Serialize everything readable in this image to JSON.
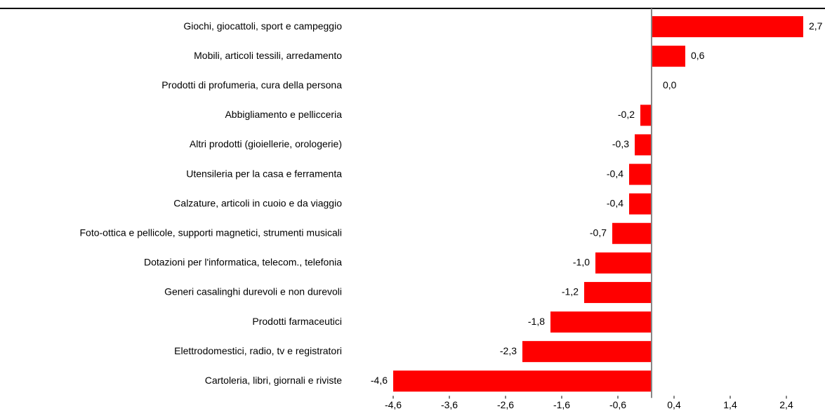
{
  "chart_data": {
    "type": "hbar",
    "categories": [
      "Giochi, giocattoli, sport e campeggio",
      "Mobili, articoli tessili, arredamento",
      "Prodotti di profumeria, cura della persona",
      "Abbigliamento e pellicceria",
      "Altri prodotti (gioiellerie, orologerie)",
      "Utensileria per la casa e ferramenta",
      "Calzature, articoli in cuoio e da viaggio",
      "Foto-ottica e pellicole, supporti magnetici, strumenti  musicali",
      "Dotazioni per l'informatica, telecom., telefonia",
      "Generi casalinghi durevoli e non durevoli",
      "Prodotti farmaceutici",
      "Elettrodomestici, radio, tv e registratori",
      "Cartoleria, libri, giornali e riviste"
    ],
    "values": [
      2.7,
      0.6,
      0.0,
      -0.2,
      -0.3,
      -0.4,
      -0.4,
      -0.7,
      -1.0,
      -1.2,
      -1.8,
      -2.3,
      -4.6
    ],
    "value_labels": [
      "2,7",
      "0,6",
      "0,0",
      "-0,2",
      "-0,3",
      "-0,4",
      "-0,4",
      "-0,7",
      "-1,0",
      "-1,2",
      "-1,8",
      "-2,3",
      "-4,6"
    ],
    "color": "#ff0000",
    "xlim": [
      -4.6,
      2.9
    ],
    "xticks": [
      {
        "value": -4.6,
        "label": "-4,6"
      },
      {
        "value": -3.6,
        "label": "-3,6"
      },
      {
        "value": -2.6,
        "label": "-2,6"
      },
      {
        "value": -1.6,
        "label": "-1,6"
      },
      {
        "value": -0.6,
        "label": "-0,6"
      },
      {
        "value": 0.4,
        "label": "0,4"
      },
      {
        "value": 1.4,
        "label": "1,4"
      },
      {
        "value": 2.4,
        "label": "2,4"
      }
    ]
  }
}
